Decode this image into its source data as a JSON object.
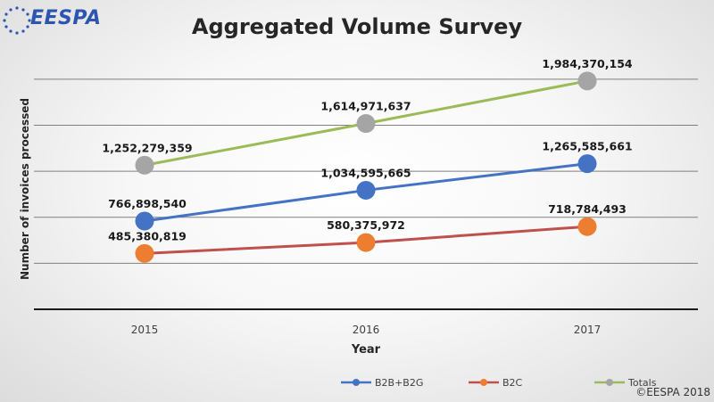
{
  "logo": {
    "text": "EESPA"
  },
  "copyright": "©EESPA 2018",
  "colors": {
    "b2b": "#4472c4",
    "b2c": "#ed7d31",
    "totals_line": "#9bbb59",
    "totals_marker": "#a5a5a5",
    "b2c_line": "#c0504d"
  },
  "chart_data": {
    "type": "line",
    "title": "Aggregated Volume Survey",
    "xlabel": "Year",
    "ylabel": "Number of invoices processed",
    "categories": [
      "2015",
      "2016",
      "2017"
    ],
    "ylim": [
      0,
      2200000000
    ],
    "grid": true,
    "legend_position": "bottom",
    "series": [
      {
        "name": "B2B+B2G",
        "values": [
          766898540,
          1034595665,
          1265585661
        ],
        "labels": [
          "766,898,540",
          "1,034,595,665",
          "1,265,585,661"
        ]
      },
      {
        "name": "B2C",
        "values": [
          485380819,
          580375972,
          718784493
        ],
        "labels": [
          "485,380,819",
          "580,375,972",
          "718,784,493"
        ]
      },
      {
        "name": "Totals",
        "values": [
          1252279359,
          1614971637,
          1984370154
        ],
        "labels": [
          "1,252,279,359",
          "1,614,971,637",
          "1,984,370,154"
        ]
      }
    ]
  }
}
